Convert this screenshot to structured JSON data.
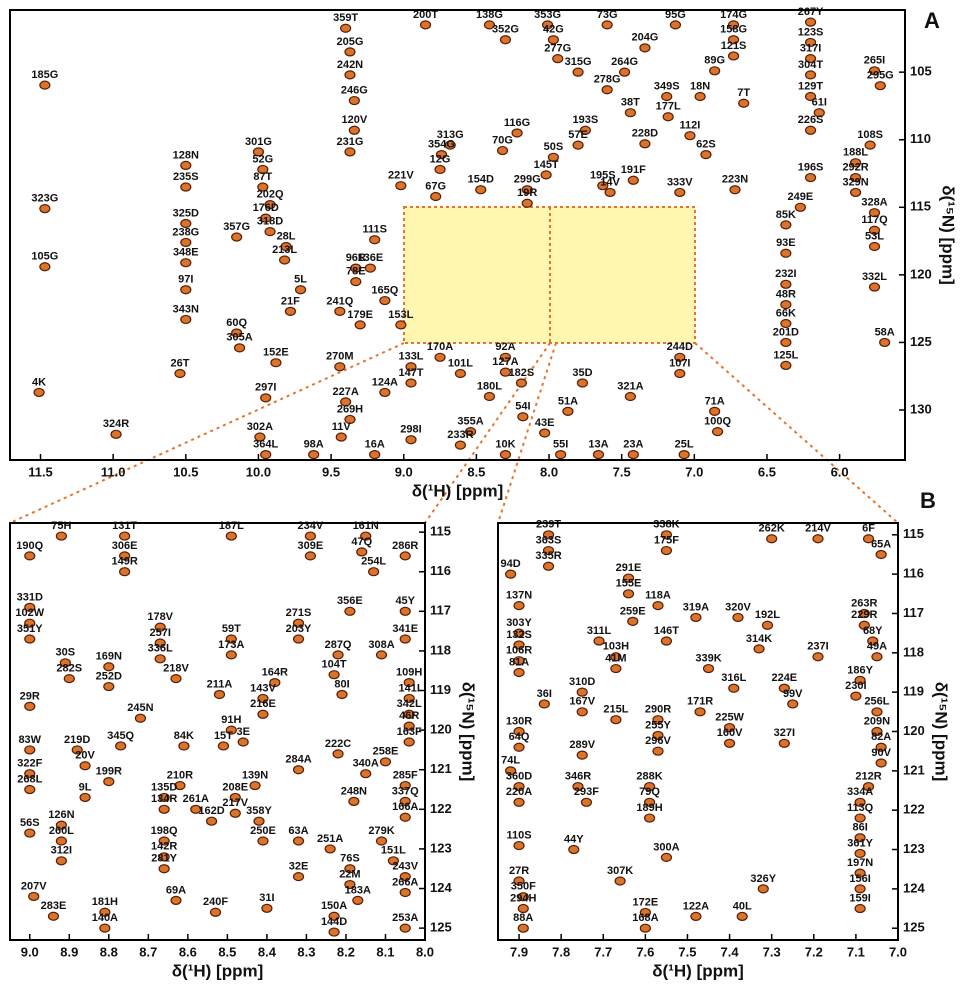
{
  "chart_data": [
    {
      "type": "scatter",
      "title": "A",
      "xlabel": "δ(¹H) [ppm]",
      "ylabel": "δ(¹⁵N) [ppm]",
      "color": "#d9742b",
      "xlim": [
        11.71,
        5.55
      ],
      "ylim": [
        100.4,
        133.7
      ],
      "xticks": [
        11.5,
        {
          "value": 11,
          "label": "11.0"
        },
        10.5,
        {
          "value": 10,
          "label": "10.0"
        },
        9.5,
        {
          "value": 9,
          "label": "9.0"
        },
        8.5,
        {
          "value": 8,
          "label": "8.0"
        },
        7.5,
        {
          "value": 7,
          "label": "7.0"
        },
        6.5,
        {
          "value": 6,
          "label": "6.0"
        }
      ],
      "yticks": [
        105,
        110,
        115,
        120,
        125,
        130
      ],
      "labels": [
        "185G",
        "359T",
        "200T",
        "138G",
        "352G",
        "353G",
        "42G",
        "73G",
        "95G",
        "174G",
        "267Y",
        "205G",
        "277G",
        "204G",
        "158G",
        "123S",
        "242N",
        "315G",
        "264G",
        "121S",
        "317I",
        "89G",
        "265I",
        "295G",
        "304T",
        "278G",
        "246G",
        "349S",
        "18N",
        "7T",
        "129T",
        "38T",
        "177L",
        "61I",
        "120V",
        "313G",
        "116G",
        "193S",
        "57E",
        "112I",
        "226S",
        "108S",
        "231G",
        "354G",
        "70G",
        "50S",
        "228D",
        "62S",
        "188L",
        "301G",
        "52G",
        "12G",
        "145T",
        "196S",
        "292R",
        "128N",
        "87T",
        "221V",
        "154D",
        "299G",
        "195S",
        "191F",
        "223N",
        "329N",
        "235S",
        "67G",
        "19R",
        "14V",
        "333V",
        "202Q",
        "323G",
        "249E",
        "328A",
        "176D",
        "85K",
        "117Q",
        "325D",
        "318D",
        "111S",
        "357G",
        "238G",
        "28L",
        "53L",
        "213L",
        "136E",
        "93E",
        "348E",
        "96R",
        "105G",
        "78E",
        "97I",
        "5L",
        "232I",
        "332L",
        "165Q",
        "48R",
        "21F",
        "241Q",
        "179E",
        "153L",
        "343N",
        "66K",
        "60Q",
        "201D",
        "58A",
        "305A",
        "244D",
        "152E",
        "270M",
        "170A",
        "92A",
        "107I",
        "125L",
        "133L",
        "26T",
        "101L",
        "127A",
        "35D",
        "147T",
        "182S",
        "321A",
        "297I",
        "227A",
        "124A",
        "180L",
        "4K",
        "71A",
        "51A",
        "54I",
        "269H",
        "355A",
        "100Q",
        "43E",
        "324R",
        "302A",
        "11V",
        "298I",
        "233R",
        "364L",
        "98A",
        "16A",
        "10K",
        "55I",
        "13A",
        "23A",
        "25L"
      ],
      "x": [
        11.47,
        9.4,
        8.85,
        8.41,
        8.3,
        8.01,
        7.97,
        7.6,
        7.13,
        6.73,
        6.2,
        9.37,
        7.94,
        7.34,
        6.73,
        6.2,
        9.37,
        7.8,
        7.48,
        6.73,
        6.2,
        6.86,
        5.76,
        5.72,
        6.2,
        7.6,
        9.34,
        7.19,
        6.96,
        6.66,
        6.2,
        7.44,
        7.18,
        6.14,
        9.34,
        8.68,
        8.22,
        7.75,
        7.8,
        7.03,
        6.2,
        5.79,
        9.37,
        8.74,
        8.32,
        7.97,
        7.34,
        6.92,
        5.89,
        10.0,
        9.97,
        8.75,
        8.02,
        6.2,
        5.89,
        10.5,
        9.97,
        9.02,
        8.47,
        8.15,
        7.63,
        7.42,
        6.72,
        5.89,
        10.5,
        8.78,
        8.15,
        7.58,
        7.1,
        9.92,
        11.47,
        6.27,
        5.76,
        9.95,
        6.37,
        5.76,
        10.5,
        9.92,
        9.2,
        10.15,
        10.5,
        9.81,
        5.76,
        9.82,
        9.23,
        6.37,
        10.5,
        9.33,
        11.47,
        9.33,
        10.5,
        9.71,
        6.37,
        5.76,
        9.13,
        6.37,
        9.78,
        9.44,
        9.3,
        9.02,
        10.5,
        6.37,
        10.15,
        6.37,
        5.69,
        10.13,
        7.1,
        9.88,
        9.44,
        8.75,
        8.3,
        7.1,
        6.37,
        8.95,
        10.54,
        8.61,
        8.3,
        7.77,
        8.95,
        8.19,
        7.44,
        9.95,
        9.4,
        9.13,
        8.41,
        11.51,
        6.86,
        7.87,
        8.18,
        9.37,
        8.54,
        6.84,
        8.03,
        10.98,
        9.99,
        9.43,
        8.95,
        8.61,
        9.95,
        9.62,
        9.2,
        8.3,
        7.92,
        7.66,
        7.42,
        7.07
      ],
      "values": [
        105.96,
        101.75,
        101.5,
        101.5,
        102.6,
        101.5,
        102.6,
        101.5,
        101.5,
        101.5,
        101.3,
        103.5,
        104.0,
        103.2,
        102.6,
        102.8,
        105.2,
        105.0,
        105.0,
        103.8,
        104.0,
        104.9,
        104.9,
        106.0,
        105.2,
        106.3,
        107.1,
        106.8,
        106.8,
        107.3,
        106.8,
        108.0,
        108.3,
        108.0,
        109.3,
        110.4,
        109.5,
        109.3,
        110.4,
        109.7,
        109.3,
        110.4,
        110.9,
        111.1,
        110.8,
        111.3,
        110.3,
        111.1,
        111.7,
        110.9,
        112.2,
        112.2,
        112.6,
        112.8,
        112.8,
        111.9,
        113.5,
        113.4,
        113.7,
        113.7,
        113.4,
        113.0,
        113.7,
        113.9,
        113.5,
        114.2,
        114.7,
        113.9,
        113.9,
        114.8,
        115.1,
        115.0,
        115.4,
        115.8,
        116.3,
        116.7,
        116.2,
        116.8,
        117.4,
        117.2,
        117.6,
        117.9,
        117.9,
        118.9,
        119.5,
        118.4,
        119.1,
        119.5,
        119.4,
        120.5,
        121.1,
        121.1,
        120.7,
        120.9,
        121.9,
        122.2,
        122.7,
        122.7,
        123.7,
        123.7,
        123.3,
        123.6,
        124.3,
        125.0,
        125.0,
        125.4,
        126.1,
        126.5,
        126.8,
        126.1,
        126.1,
        127.3,
        126.7,
        126.8,
        127.3,
        127.3,
        127.2,
        128.0,
        128.0,
        128.0,
        129.0,
        129.1,
        129.4,
        128.7,
        129.0,
        128.7,
        130.1,
        130.1,
        130.5,
        130.7,
        131.6,
        131.6,
        131.7,
        131.8,
        132.0,
        132.0,
        132.2,
        132.6,
        133.3,
        133.3,
        133.3,
        133.3,
        133.3,
        133.3,
        133.3,
        133.3
      ]
    },
    {
      "type": "scatter",
      "xlabel": "δ(¹H) [ppm]",
      "ylabel": "δ(¹⁵N) [ppm]",
      "color": "#d9742b",
      "xlim": [
        9.05,
        8.0
      ],
      "ylim": [
        114.77,
        125.3
      ],
      "xticks": [
        {
          "value": 9,
          "label": "9.0"
        },
        8.9,
        8.8,
        8.7,
        8.6,
        8.5,
        8.4,
        8.3,
        8.2,
        8.1,
        {
          "value": 8,
          "label": "8.0"
        }
      ],
      "yticks": [
        115,
        116,
        117,
        118,
        119,
        120,
        121,
        122,
        123,
        124,
        125
      ],
      "labels": [
        "75H",
        "131T",
        "187L",
        "234V",
        "161N",
        "190Q",
        "306E",
        "309E",
        "47Q",
        "286R",
        "149R",
        "254L",
        "331D",
        "102W",
        "271S",
        "356E",
        "45Y",
        "178V",
        "351Y",
        "257I",
        "59T",
        "203Y",
        "341E",
        "336L",
        "173A",
        "287Q",
        "308A",
        "30S",
        "169N",
        "218V",
        "282S",
        "252D",
        "164R",
        "104T",
        "109H",
        "211A",
        "80I",
        "141I",
        "143V",
        "29R",
        "245N",
        "216E",
        "342L",
        "91H",
        "46R",
        "84K",
        "15T",
        "83W",
        "345Q",
        "3E",
        "163F",
        "219D",
        "222C",
        "258E",
        "20V",
        "284A",
        "340A",
        "210R",
        "139N",
        "322F",
        "199R",
        "285F",
        "268L",
        "9L",
        "208E",
        "248N",
        "337Q",
        "261A",
        "217V",
        "166A",
        "126N",
        "134R",
        "358Y",
        "63A",
        "251A",
        "279K",
        "260L",
        "162D",
        "135D",
        "56S",
        "312I",
        "198Q",
        "142R",
        "250E",
        "151L",
        "76S",
        "32E",
        "22M",
        "281Y",
        "243V",
        "183A",
        "266A",
        "207V",
        "69A",
        "31I",
        "240F",
        "181H",
        "283E",
        "150A",
        "140A",
        "144D",
        "253A"
      ],
      "x": [
        8.92,
        8.76,
        8.49,
        8.29,
        8.15,
        9.0,
        8.76,
        8.29,
        8.16,
        8.05,
        8.76,
        8.13,
        9.0,
        9.0,
        8.32,
        8.19,
        8.05,
        8.67,
        9.0,
        8.67,
        8.49,
        8.32,
        8.05,
        8.67,
        8.49,
        8.22,
        8.11,
        8.91,
        8.8,
        8.63,
        8.9,
        8.8,
        8.38,
        8.23,
        8.04,
        8.52,
        8.21,
        8.04,
        8.41,
        9.0,
        8.72,
        8.41,
        8.04,
        8.49,
        8.04,
        8.61,
        8.51,
        9.0,
        8.77,
        8.46,
        8.04,
        8.88,
        8.22,
        8.1,
        8.86,
        8.32,
        8.15,
        8.62,
        8.43,
        9.0,
        8.8,
        8.05,
        9.0,
        8.86,
        8.48,
        8.18,
        8.05,
        8.58,
        8.48,
        8.05,
        8.92,
        8.66,
        8.42,
        8.32,
        8.24,
        8.11,
        8.92,
        8.54,
        8.66,
        9.0,
        8.92,
        8.66,
        8.66,
        8.41,
        8.08,
        8.19,
        8.32,
        8.19,
        8.66,
        8.05,
        8.17,
        8.05,
        8.99,
        8.63,
        8.4,
        8.53,
        8.81,
        8.94,
        8.23,
        8.81,
        8.23,
        8.05
      ],
      "values": [
        115.1,
        115.1,
        115.1,
        115.1,
        115.1,
        115.6,
        115.6,
        115.6,
        115.5,
        115.6,
        116.0,
        116.0,
        116.9,
        117.3,
        117.3,
        117.0,
        117.0,
        117.4,
        117.7,
        117.8,
        117.7,
        117.7,
        117.7,
        118.2,
        118.1,
        118.1,
        118.1,
        118.3,
        118.4,
        118.7,
        118.7,
        118.9,
        118.8,
        118.6,
        118.8,
        119.1,
        119.1,
        119.2,
        119.2,
        119.4,
        119.7,
        119.6,
        119.6,
        120.0,
        119.9,
        120.4,
        120.4,
        120.5,
        120.4,
        120.3,
        120.3,
        120.5,
        120.6,
        120.8,
        120.9,
        121.0,
        121.1,
        121.4,
        121.4,
        121.1,
        121.3,
        121.4,
        121.5,
        121.7,
        121.7,
        121.8,
        121.8,
        122.0,
        122.1,
        122.2,
        122.4,
        122.0,
        122.3,
        122.8,
        123.0,
        122.8,
        122.8,
        122.3,
        121.7,
        122.6,
        123.3,
        122.8,
        123.2,
        122.8,
        123.3,
        123.5,
        123.7,
        123.9,
        123.5,
        123.7,
        124.3,
        124.1,
        124.2,
        124.3,
        124.5,
        124.6,
        124.6,
        124.7,
        124.7,
        125.0,
        125.1,
        125.0
      ]
    },
    {
      "type": "scatter",
      "title": "B",
      "xlabel": "δ(¹H) [ppm]",
      "ylabel": "δ(¹⁵N) [ppm]",
      "color": "#d9742b",
      "xlim": [
        7.95,
        7.0
      ],
      "ylim": [
        114.7,
        125.3
      ],
      "xticks": [
        7.9,
        7.8,
        7.7,
        7.6,
        7.5,
        7.4,
        7.3,
        7.2,
        7.1,
        {
          "value": 7,
          "label": "7.0"
        }
      ],
      "yticks": [
        115,
        116,
        117,
        118,
        119,
        120,
        121,
        122,
        123,
        124,
        125
      ],
      "labels": [
        "239T",
        "338K",
        "262K",
        "214V",
        "6F",
        "363S",
        "175F",
        "335R",
        "65A",
        "94D",
        "291E",
        "155E",
        "263R",
        "319A",
        "320V",
        "192L",
        "137N",
        "229R",
        "118A",
        "259E",
        "311L",
        "303Y",
        "68Y",
        "314K",
        "132S",
        "146T",
        "49A",
        "103H",
        "106R",
        "237I",
        "41M",
        "339K",
        "81A",
        "186Y",
        "316L",
        "224E",
        "310D",
        "99V",
        "230I",
        "36I",
        "167V",
        "171R",
        "256L",
        "215L",
        "290R",
        "209N",
        "130R",
        "225W",
        "255Y",
        "160V",
        "327I",
        "82A",
        "64Q",
        "296V",
        "289V",
        "90V",
        "74L",
        "212R",
        "288K",
        "360D",
        "346R",
        "79Q",
        "334A",
        "220A",
        "293F",
        "113Q",
        "189H",
        "86I",
        "110S",
        "44Y",
        "361Y",
        "197N",
        "300A",
        "27R",
        "307K",
        "156I",
        "350F",
        "326Y",
        "159I",
        "294H",
        "122A",
        "40L",
        "172E",
        "88A",
        "168A"
      ],
      "x": [
        7.83,
        7.55,
        7.3,
        7.19,
        7.07,
        7.83,
        7.55,
        7.83,
        7.04,
        7.92,
        7.64,
        7.64,
        7.08,
        7.48,
        7.38,
        7.31,
        7.9,
        7.08,
        7.57,
        7.63,
        7.71,
        7.9,
        7.06,
        7.33,
        7.9,
        7.55,
        7.05,
        7.67,
        7.9,
        7.19,
        7.67,
        7.45,
        7.9,
        7.09,
        7.39,
        7.27,
        7.75,
        7.25,
        7.1,
        7.84,
        7.75,
        7.47,
        7.05,
        7.67,
        7.57,
        7.05,
        7.9,
        7.4,
        7.57,
        7.4,
        7.27,
        7.04,
        7.9,
        7.57,
        7.75,
        7.04,
        7.92,
        7.07,
        7.59,
        7.9,
        7.76,
        7.59,
        7.09,
        7.9,
        7.74,
        7.09,
        7.59,
        7.09,
        7.9,
        7.77,
        7.09,
        7.09,
        7.55,
        7.9,
        7.66,
        7.09,
        7.89,
        7.32,
        7.09,
        7.89,
        7.48,
        7.37,
        7.6,
        7.89,
        7.6
      ],
      "values": [
        115.0,
        115.0,
        115.1,
        115.1,
        115.1,
        115.4,
        115.4,
        115.8,
        115.5,
        116.0,
        116.1,
        116.5,
        117.0,
        117.1,
        117.1,
        117.3,
        116.8,
        117.3,
        116.8,
        117.2,
        117.7,
        117.5,
        117.7,
        117.9,
        117.8,
        117.7,
        118.1,
        118.1,
        118.2,
        118.1,
        118.4,
        118.4,
        118.5,
        118.7,
        118.9,
        118.9,
        119.0,
        119.3,
        119.1,
        119.3,
        119.5,
        119.5,
        119.5,
        119.7,
        119.7,
        120.0,
        120.0,
        119.9,
        120.1,
        120.3,
        120.3,
        120.4,
        120.4,
        120.5,
        120.6,
        120.8,
        121.0,
        121.4,
        121.4,
        121.4,
        121.4,
        121.8,
        121.8,
        121.8,
        121.8,
        122.2,
        122.2,
        122.7,
        122.9,
        123.0,
        123.1,
        123.6,
        123.2,
        123.8,
        123.8,
        124.0,
        124.2,
        124.0,
        124.5,
        124.5,
        124.7,
        124.7,
        124.6,
        125.0,
        125.0
      ]
    }
  ]
}
